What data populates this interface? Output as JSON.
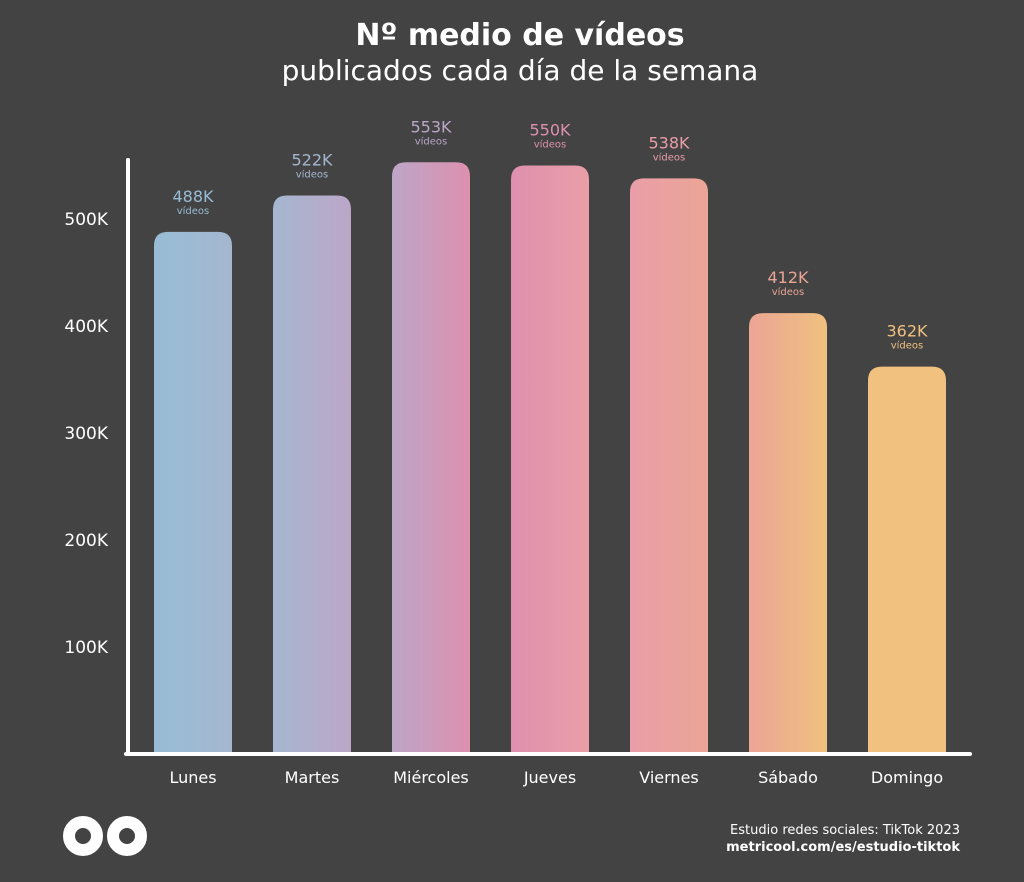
{
  "title": "Nº medio de vídeos",
  "subtitle": "publicados cada día de la semana",
  "colors": {
    "background": "#434343",
    "axis": "#ffffff",
    "bars": [
      "#97bdd5",
      "#a5b7d0",
      "#bca6c8",
      "#de90ae",
      "#e99ea8",
      "#eba595",
      "#f0c17f"
    ]
  },
  "chart_data": {
    "type": "bar",
    "title": "Nº medio de vídeos",
    "subtitle": "publicados cada día de la semana",
    "categories": [
      "Lunes",
      "Martes",
      "Miércoles",
      "Jueves",
      "Viernes",
      "Sábado",
      "Domingo"
    ],
    "values": [
      488000,
      522000,
      553000,
      550000,
      538000,
      412000,
      362000
    ],
    "value_labels": [
      "488K",
      "522K",
      "553K",
      "550K",
      "538K",
      "412K",
      "362K"
    ],
    "value_unit": "vídeos",
    "ytick_values": [
      100000,
      200000,
      300000,
      400000,
      500000
    ],
    "ytick_labels": [
      "100K",
      "200K",
      "300K",
      "400K",
      "500K"
    ],
    "ylim": [
      0,
      560000
    ],
    "grid": false,
    "legend": "none"
  },
  "footer": {
    "study": "Estudio redes sociales: TikTok 2023",
    "url": "metricool.com/es/estudio-tiktok"
  },
  "logo": {
    "icon": "metricool-infinity-logo"
  }
}
